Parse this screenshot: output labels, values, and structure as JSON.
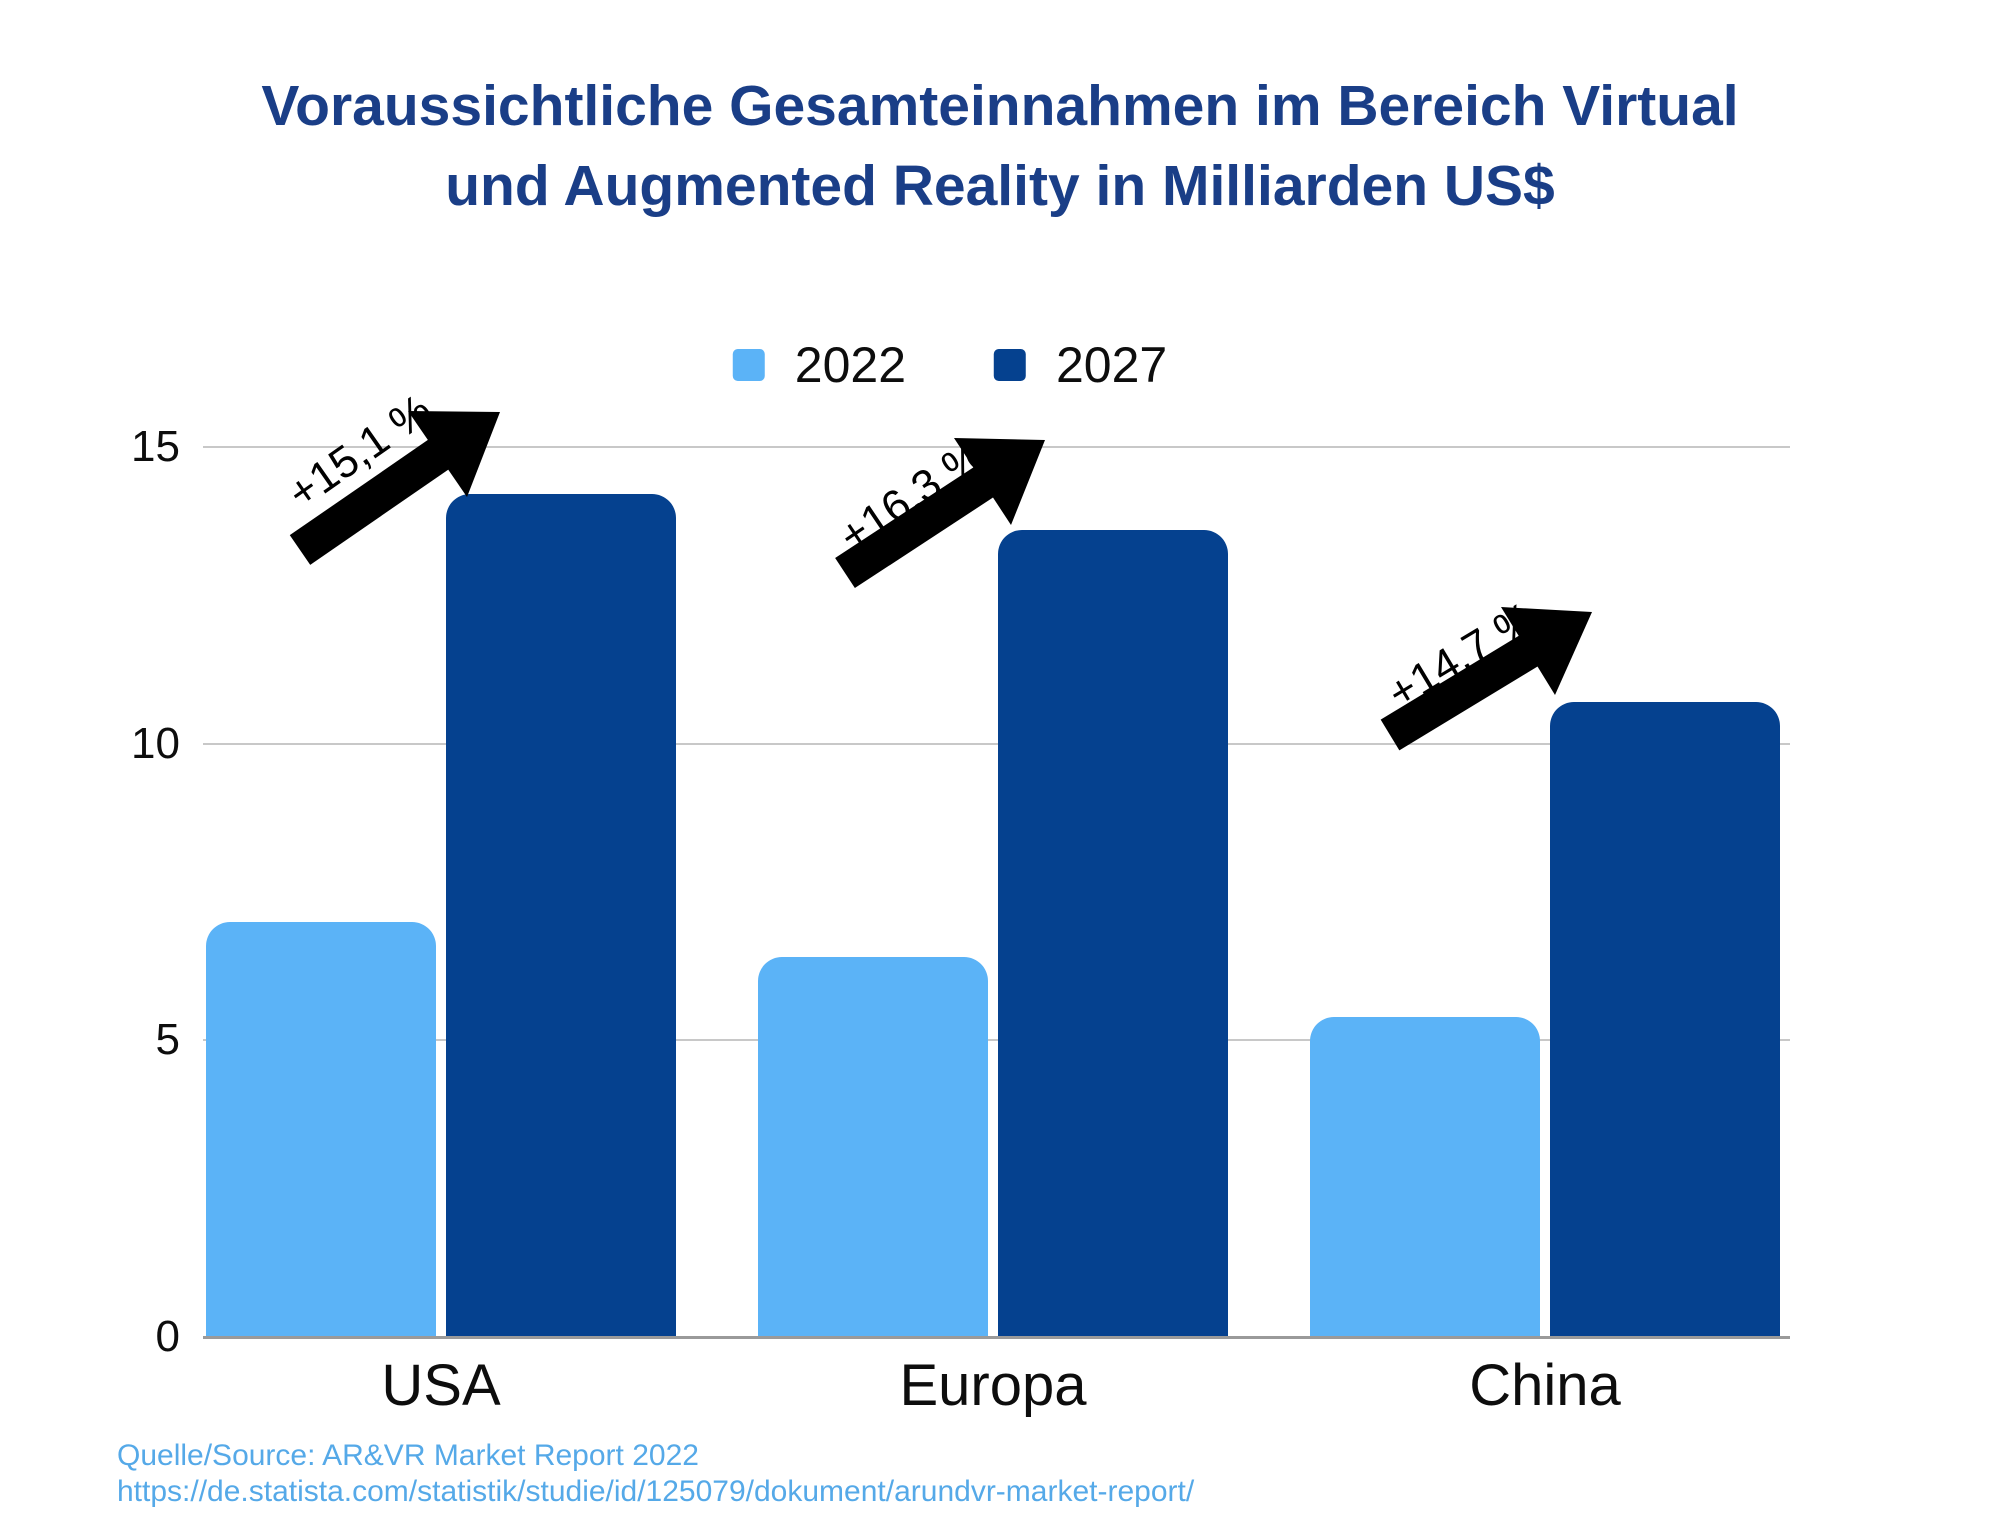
{
  "title_lines": {
    "line1": "Voraussichtliche Gesamteinnahmen im Bereich Virtual",
    "line2": "und Augmented Reality in Milliarden US$"
  },
  "source": {
    "line1": "Quelle/Source: AR&VR Market Report 2022",
    "line2": "https://de.statista.com/statistik/studie/id/125079/dokument/arundvr-market-report/"
  },
  "colors": {
    "title": "#1A3E87",
    "source_text": "#55A9E8",
    "series_2022": "#5BB3F7",
    "series_2027": "#05418F",
    "gridline": "#C8C8C8",
    "axis_line": "#9A9A9A",
    "annotation": "#000000"
  },
  "chart_data": {
    "type": "bar",
    "title": "Voraussichtliche Gesamteinnahmen im Bereich Virtual und Augmented Reality in Milliarden US$",
    "categories": [
      "USA",
      "Europa",
      "China"
    ],
    "series": [
      {
        "name": "2022",
        "color": "#5BB3F7",
        "values": [
          7.0,
          6.4,
          5.4
        ]
      },
      {
        "name": "2027",
        "color": "#05418F",
        "values": [
          14.2,
          13.6,
          10.7
        ]
      }
    ],
    "annotations": [
      {
        "category": "USA",
        "label": "+15,1 %"
      },
      {
        "category": "Europa",
        "label": "+16,3 %"
      },
      {
        "category": "China",
        "label": "+14,7 %"
      }
    ],
    "xlabel": "",
    "ylabel": "",
    "yticks": [
      0,
      5,
      10,
      15
    ],
    "ylim": [
      0,
      15
    ],
    "grid": true,
    "legend_position": "top",
    "unit": "Milliarden US$"
  }
}
